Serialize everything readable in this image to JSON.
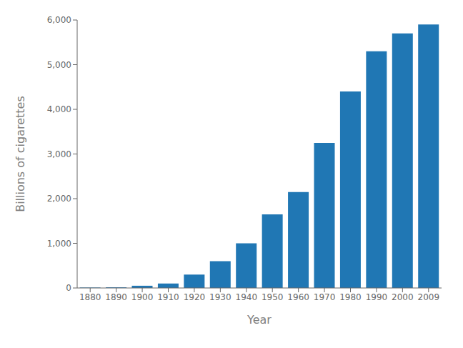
{
  "chart_data": {
    "type": "bar",
    "xlabel": "Year",
    "ylabel": "Billions of cigarettes",
    "categories": [
      "1880",
      "1890",
      "1900",
      "1910",
      "1920",
      "1930",
      "1940",
      "1950",
      "1960",
      "1970",
      "1980",
      "1990",
      "2000",
      "2009"
    ],
    "values": [
      10,
      15,
      50,
      100,
      300,
      600,
      1000,
      1650,
      2150,
      3250,
      4400,
      5300,
      5700,
      5900
    ],
    "color": "#2077B4",
    "ylim": [
      0,
      6000
    ],
    "yticks": [
      0,
      {
        "value": 1000,
        "label": "1,000"
      },
      {
        "value": 2000,
        "label": "2,000"
      },
      {
        "value": 3000,
        "label": "3,000"
      },
      {
        "value": 4000,
        "label": "4,000"
      },
      {
        "value": 5000,
        "label": "5,000"
      },
      {
        "value": 6000,
        "label": "6,000"
      }
    ],
    "grid": false
  }
}
